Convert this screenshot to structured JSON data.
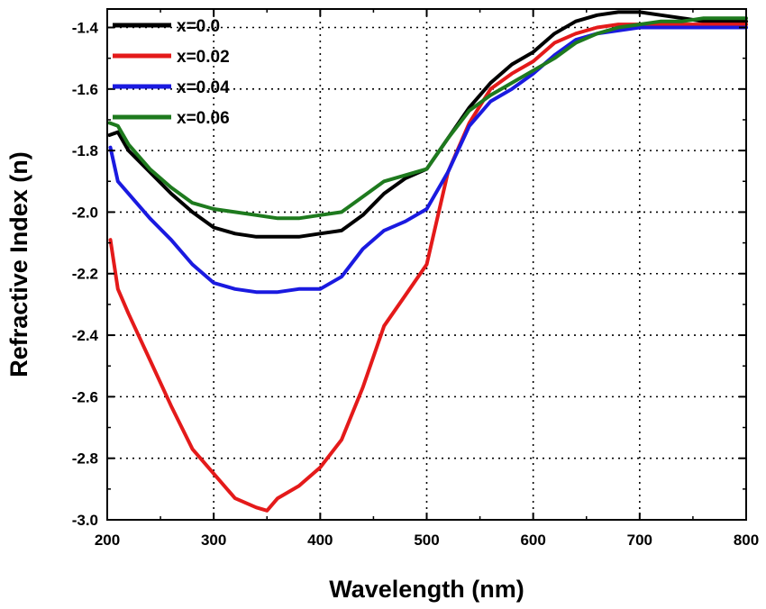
{
  "chart_data": {
    "type": "line",
    "xlabel": "Wavelength (nm)",
    "ylabel": "Refractive Index (n)",
    "xlim": [
      200,
      800
    ],
    "ylim": [
      -3.0,
      -1.34
    ],
    "xticks": [
      200,
      300,
      400,
      500,
      600,
      700,
      800
    ],
    "xtick_labels": [
      "200",
      "300",
      "400",
      "500",
      "600",
      "700",
      "800"
    ],
    "yticks": [
      -3.0,
      -2.8,
      -2.6,
      -2.4,
      -2.2,
      -2.0,
      -1.8,
      -1.6,
      -1.4
    ],
    "ytick_labels": [
      "-3.0",
      "-2.8",
      "-2.6",
      "-2.4",
      "-2.2",
      "-2.0",
      "-1.8",
      "-1.6",
      "-1.4"
    ],
    "grid": true,
    "grid_style": "dotted",
    "legend_position": "top-left",
    "series": [
      {
        "name": "x=0.0",
        "color": "#000000",
        "x": [
          202,
          210,
          220,
          240,
          260,
          280,
          300,
          320,
          340,
          360,
          380,
          400,
          420,
          440,
          460,
          480,
          500,
          520,
          540,
          560,
          580,
          600,
          620,
          640,
          660,
          680,
          700,
          720,
          740,
          760,
          780,
          800
        ],
        "y": [
          -1.75,
          -1.74,
          -1.8,
          -1.87,
          -1.94,
          -2.0,
          -2.05,
          -2.07,
          -2.08,
          -2.08,
          -2.08,
          -2.07,
          -2.06,
          -2.01,
          -1.94,
          -1.89,
          -1.86,
          -1.76,
          -1.66,
          -1.58,
          -1.52,
          -1.48,
          -1.42,
          -1.38,
          -1.36,
          -1.35,
          -1.35,
          -1.36,
          -1.37,
          -1.38,
          -1.38,
          -1.38
        ]
      },
      {
        "name": "x=0.02",
        "color": "#e41a1a",
        "x": [
          203,
          210,
          220,
          240,
          260,
          280,
          300,
          320,
          340,
          350,
          360,
          380,
          400,
          420,
          440,
          460,
          480,
          500,
          520,
          540,
          560,
          580,
          600,
          620,
          640,
          660,
          680,
          700,
          720,
          740,
          760,
          780,
          800
        ],
        "y": [
          -2.09,
          -2.25,
          -2.33,
          -2.48,
          -2.63,
          -2.77,
          -2.85,
          -2.93,
          -2.96,
          -2.97,
          -2.93,
          -2.89,
          -2.83,
          -2.74,
          -2.57,
          -2.37,
          -2.27,
          -2.17,
          -1.87,
          -1.71,
          -1.6,
          -1.55,
          -1.51,
          -1.45,
          -1.42,
          -1.4,
          -1.39,
          -1.39,
          -1.39,
          -1.39,
          -1.39,
          -1.39,
          -1.39
        ]
      },
      {
        "name": "x=0.04",
        "color": "#1a1ae0",
        "x": [
          203,
          210,
          220,
          240,
          260,
          280,
          300,
          320,
          340,
          360,
          380,
          400,
          420,
          440,
          460,
          480,
          500,
          520,
          540,
          560,
          580,
          600,
          620,
          640,
          660,
          680,
          700,
          720,
          740,
          760,
          780,
          800
        ],
        "y": [
          -1.79,
          -1.9,
          -1.94,
          -2.02,
          -2.09,
          -2.17,
          -2.23,
          -2.25,
          -2.26,
          -2.26,
          -2.25,
          -2.25,
          -2.21,
          -2.12,
          -2.06,
          -2.03,
          -1.99,
          -1.87,
          -1.72,
          -1.64,
          -1.6,
          -1.55,
          -1.49,
          -1.44,
          -1.42,
          -1.41,
          -1.4,
          -1.4,
          -1.4,
          -1.4,
          -1.4,
          -1.4
        ]
      },
      {
        "name": "x=0.06",
        "color": "#1e7a1e",
        "x": [
          202,
          210,
          220,
          240,
          260,
          280,
          300,
          320,
          340,
          360,
          380,
          400,
          420,
          440,
          460,
          480,
          500,
          520,
          540,
          560,
          580,
          600,
          620,
          640,
          660,
          680,
          700,
          720,
          740,
          760,
          780,
          800
        ],
        "y": [
          -1.71,
          -1.72,
          -1.78,
          -1.86,
          -1.92,
          -1.97,
          -1.99,
          -2.0,
          -2.01,
          -2.02,
          -2.02,
          -2.01,
          -2.0,
          -1.95,
          -1.9,
          -1.88,
          -1.86,
          -1.76,
          -1.67,
          -1.62,
          -1.58,
          -1.54,
          -1.5,
          -1.45,
          -1.42,
          -1.4,
          -1.39,
          -1.38,
          -1.38,
          -1.37,
          -1.37,
          -1.37
        ]
      }
    ]
  }
}
